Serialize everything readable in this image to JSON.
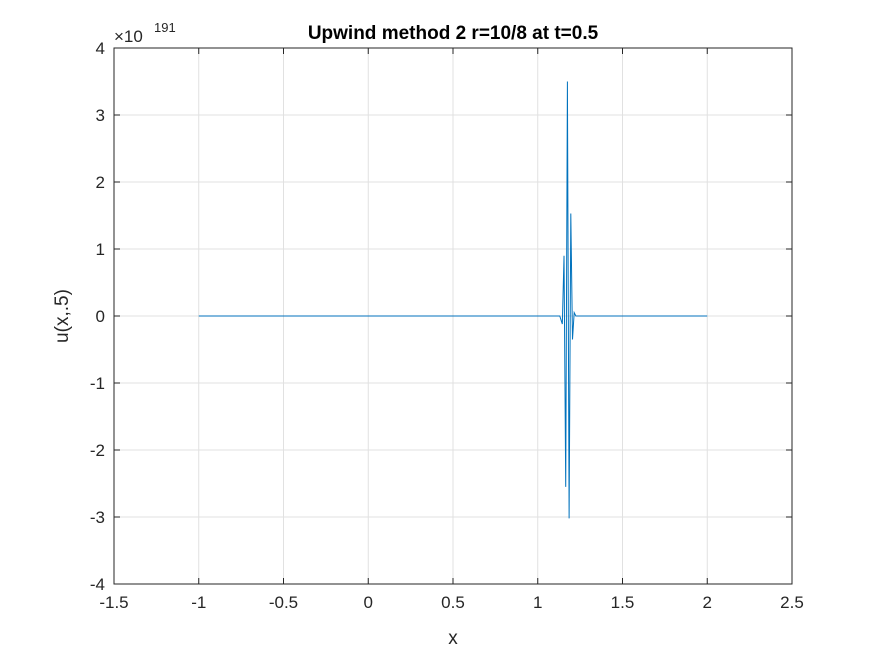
{
  "chart_data": {
    "type": "line",
    "title": "Upwind method 2 r=10/8 at t=0.5",
    "xlabel": "x",
    "ylabel": "u(x,.5)",
    "y_exponent_base": "×10",
    "y_exponent_power": "191",
    "xlim": [
      -1.5,
      2.5
    ],
    "ylim": [
      -4,
      4
    ],
    "x_ticks": [
      -1.5,
      -1,
      -0.5,
      0,
      0.5,
      1,
      1.5,
      2,
      2.5
    ],
    "x_tick_labels": [
      "-1.5",
      "-1",
      "-0.5",
      "0",
      "0.5",
      "1",
      "1.5",
      "2",
      "2.5"
    ],
    "y_ticks": [
      -4,
      -3,
      -2,
      -1,
      0,
      1,
      2,
      3,
      4
    ],
    "y_tick_labels": [
      "-4",
      "-3",
      "-2",
      "-1",
      "0",
      "1",
      "2",
      "3",
      "4"
    ],
    "grid": true,
    "line_color": "#0072BD",
    "series": [
      {
        "x": [
          -1.0,
          1.13,
          1.145,
          1.155,
          1.165,
          1.175,
          1.185,
          1.195,
          1.205,
          1.215,
          1.225,
          2.0
        ],
        "y": [
          0,
          0,
          -0.12,
          0.9,
          -2.55,
          3.5,
          -3.02,
          1.53,
          -0.35,
          0.05,
          0,
          0
        ]
      }
    ]
  }
}
